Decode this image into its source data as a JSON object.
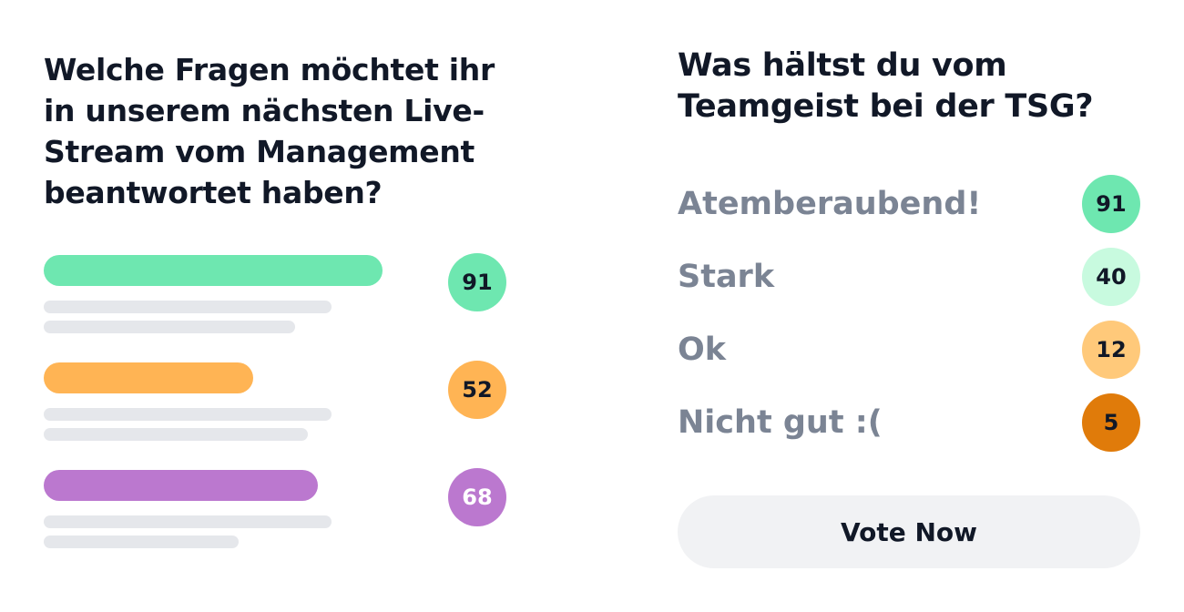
{
  "left_poll": {
    "question": "Welche Fragen möchtet ihr in unserem nächsten Live-Stream vom Management beantwortet haben?",
    "items": [
      {
        "count": "91",
        "color": "#6ee7b0",
        "bar_fraction": 0.73
      },
      {
        "count": "52",
        "color": "#ffb454",
        "bar_fraction": 0.45
      },
      {
        "count": "68",
        "color": "#bb78cf",
        "bar_fraction": 0.59
      }
    ]
  },
  "right_poll": {
    "question": "Was hältst du vom Teamgeist bei der TSG?",
    "options": [
      {
        "label": "Atemberaubend!",
        "count": "91",
        "color": "#6ee7b0"
      },
      {
        "label": "Stark",
        "count": "40",
        "color": "#c8fadf"
      },
      {
        "label": "Ok",
        "count": "12",
        "color": "#ffc97a"
      },
      {
        "label": "Nicht gut :(",
        "count": "5",
        "color": "#e07b0a"
      }
    ],
    "vote_button_label": "Vote Now"
  }
}
